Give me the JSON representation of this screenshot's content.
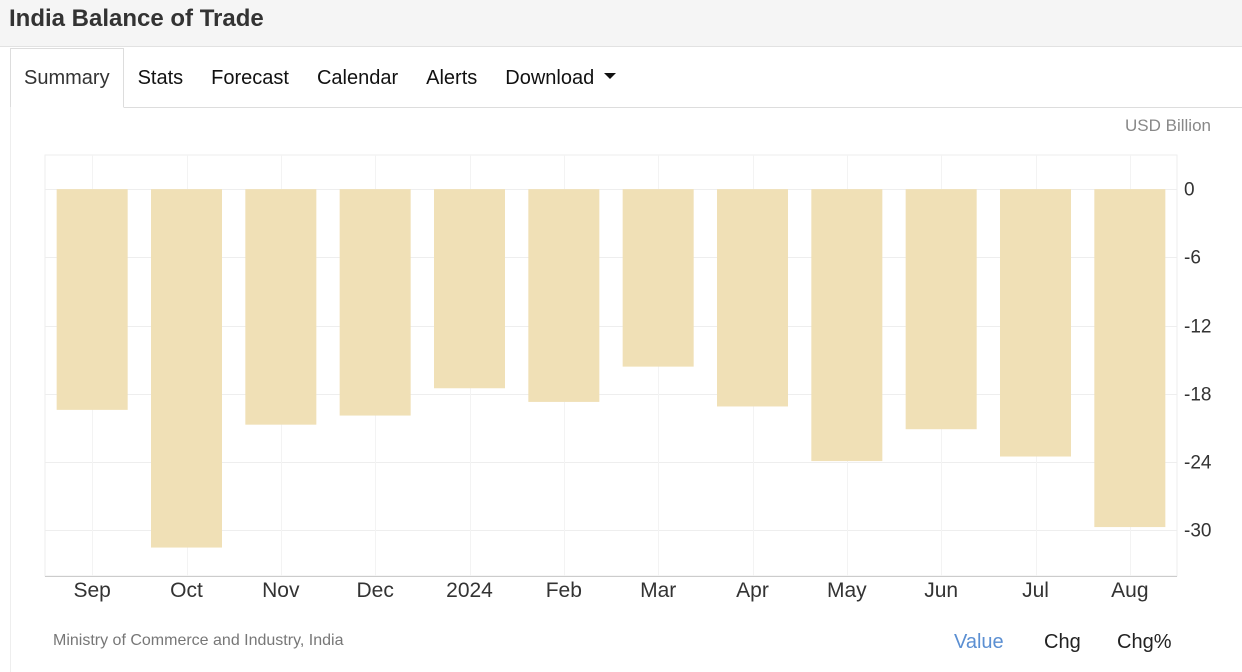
{
  "header": {
    "title": "India Balance of Trade"
  },
  "tabs": [
    {
      "label": "Summary",
      "active": true
    },
    {
      "label": "Stats"
    },
    {
      "label": "Forecast"
    },
    {
      "label": "Calendar"
    },
    {
      "label": "Alerts"
    },
    {
      "label": "Download",
      "dropdown": true
    }
  ],
  "footer": {
    "source": "Ministry of Commerce and Industry, India",
    "modes": [
      "Value",
      "Chg",
      "Chg%"
    ],
    "active_mode": "Value"
  },
  "colors": {
    "bar": "#f0e0b6",
    "grid": "#eeeeee",
    "active_mode": "#5b8fd2"
  },
  "chart_data": {
    "type": "bar",
    "unit": "USD Billion",
    "categories": [
      "Sep",
      "Oct",
      "Nov",
      "Dec",
      "2024",
      "Feb",
      "Mar",
      "Apr",
      "May",
      "Jun",
      "Jul",
      "Aug"
    ],
    "values": [
      -19.4,
      -31.5,
      -20.7,
      -19.9,
      -17.5,
      -18.7,
      -15.6,
      -19.1,
      -23.9,
      -21.1,
      -23.5,
      -29.7
    ],
    "ylim": [
      -34,
      3
    ],
    "yticks": [
      0,
      -6,
      -12,
      -18,
      -24,
      -30
    ],
    "ytick_labels": [
      "0",
      "-6",
      "-12",
      "-18",
      "-24",
      "-30"
    ],
    "axis_side": "right",
    "grid": true
  }
}
